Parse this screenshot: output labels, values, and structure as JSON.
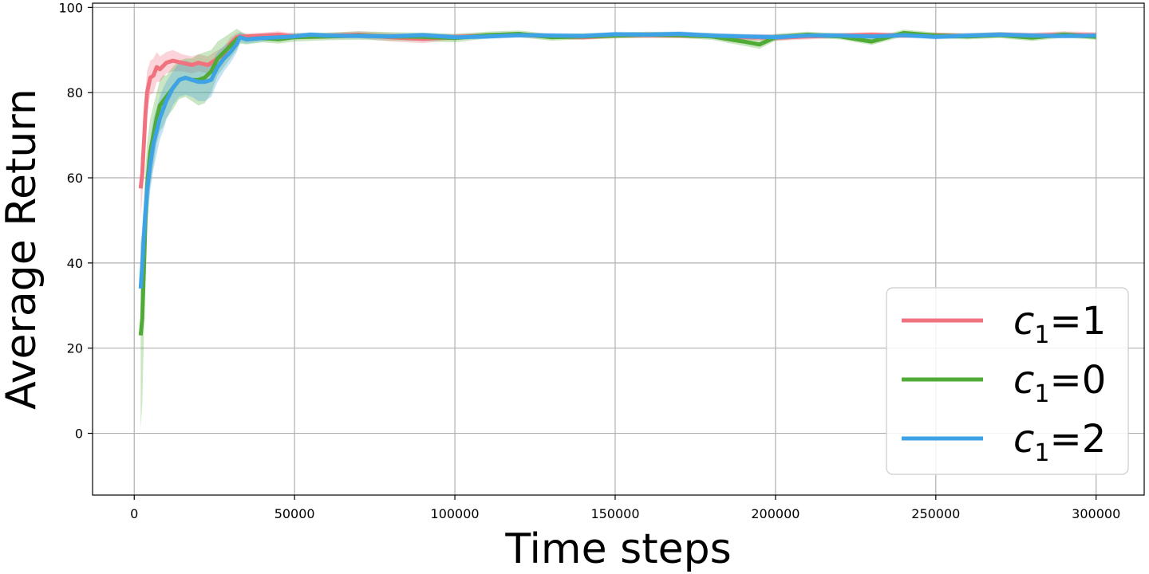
{
  "chart_data": {
    "type": "line",
    "title": "",
    "xlabel": "Time steps",
    "ylabel": "Average Return",
    "xlim": [
      -13000,
      315000
    ],
    "ylim": [
      -14.5,
      101
    ],
    "xticks": [
      0,
      50000,
      100000,
      150000,
      200000,
      250000,
      300000
    ],
    "xtick_labels": [
      "0",
      "50000",
      "100000",
      "150000",
      "200000",
      "250000",
      "300000"
    ],
    "yticks": [
      0,
      20,
      40,
      60,
      80,
      100
    ],
    "ytick_labels": [
      "0",
      "20",
      "40",
      "60",
      "80",
      "100"
    ],
    "grid": true,
    "legend_position": "bottom-right",
    "series": [
      {
        "name": "c1=1",
        "legend": {
          "base": "c",
          "sub": "1",
          "rest": "=1"
        },
        "color": "#f0727f",
        "x": [
          2000,
          2500,
          3000,
          3500,
          4000,
          5000,
          6000,
          7000,
          8000,
          10000,
          12000,
          15000,
          18000,
          20000,
          23000,
          25000,
          28000,
          30000,
          32000,
          33000,
          35000,
          40000,
          45000,
          50000,
          60000,
          70000,
          80000,
          90000,
          100000,
          110000,
          120000,
          130000,
          140000,
          150000,
          160000,
          170000,
          180000,
          190000,
          200000,
          210000,
          220000,
          230000,
          240000,
          250000,
          260000,
          270000,
          280000,
          290000,
          300000
        ],
        "y": [
          57.5,
          61,
          68,
          75,
          80,
          83.5,
          84,
          86,
          85.5,
          87,
          87.5,
          87,
          86.5,
          87,
          86.5,
          87.5,
          89,
          91.5,
          93,
          93.2,
          93.2,
          93.4,
          93.6,
          93.2,
          93.3,
          93.6,
          93,
          92.6,
          93.1,
          93.4,
          93.6,
          93.2,
          93,
          93.4,
          93.5,
          93.4,
          93.3,
          93,
          92.9,
          93.2,
          93.4,
          93.6,
          93.4,
          93.5,
          93.3,
          93.6,
          93.4,
          93.6,
          93.5
        ],
        "band_width": [
          7,
          6,
          6,
          5.5,
          5,
          4,
          4,
          3.5,
          3,
          2.5,
          2.5,
          2,
          2,
          2,
          2,
          2,
          1.8,
          1.5,
          1,
          0.8,
          0.7,
          0.7,
          0.8,
          0.7,
          0.7,
          0.8,
          1,
          1,
          0.7,
          0.6,
          0.6,
          0.6,
          0.6,
          0.6,
          0.7,
          0.6,
          0.6,
          0.7,
          0.8,
          0.7,
          0.6,
          0.6,
          0.6,
          0.6,
          0.6,
          0.6,
          0.7,
          0.8,
          0.7
        ]
      },
      {
        "name": "c1=0",
        "legend": {
          "base": "c",
          "sub": "1",
          "rest": "=0"
        },
        "color": "#4fab35",
        "x": [
          2000,
          2500,
          3000,
          3500,
          4000,
          5000,
          6000,
          7000,
          8000,
          9000,
          10000,
          12000,
          14000,
          16000,
          18000,
          20000,
          22000,
          24000,
          26000,
          28000,
          30000,
          32000,
          33000,
          35000,
          40000,
          45000,
          50000,
          60000,
          70000,
          80000,
          90000,
          100000,
          110000,
          120000,
          130000,
          140000,
          150000,
          160000,
          170000,
          180000,
          190000,
          195000,
          200000,
          210000,
          220000,
          230000,
          240000,
          250000,
          260000,
          270000,
          280000,
          290000,
          300000
        ],
        "y": [
          23,
          27,
          38,
          50,
          58,
          66,
          70,
          74,
          77,
          78,
          79,
          81,
          83,
          83.5,
          83,
          83,
          83.5,
          85,
          88,
          89.5,
          91,
          92.5,
          93,
          92.5,
          92.8,
          92.5,
          93,
          93.2,
          93.4,
          93.2,
          93.1,
          92.8,
          93.5,
          93.8,
          93,
          93.2,
          93.4,
          93.6,
          93.5,
          93.2,
          92,
          91.3,
          93,
          93.6,
          93.2,
          92,
          94,
          93.4,
          93.2,
          93.5,
          92.9,
          93.6,
          93.1
        ],
        "band_width": [
          22,
          20,
          15,
          12,
          10,
          8,
          7,
          6,
          6,
          6,
          5,
          5,
          4.5,
          4.5,
          5,
          6,
          6,
          5,
          4,
          3.5,
          3,
          2.5,
          1.5,
          1.2,
          1,
          1,
          1,
          0.9,
          1,
          1,
          1,
          1,
          0.8,
          0.8,
          0.8,
          0.7,
          0.7,
          0.7,
          0.7,
          0.8,
          1,
          1,
          0.8,
          0.7,
          0.7,
          0.8,
          0.8,
          0.7,
          0.7,
          0.7,
          0.8,
          0.7,
          0.7
        ]
      },
      {
        "name": "c1=2",
        "legend": {
          "base": "c",
          "sub": "1",
          "rest": "=2"
        },
        "color": "#3ea2e6",
        "x": [
          2000,
          2500,
          3000,
          3500,
          4000,
          5000,
          6000,
          7000,
          8000,
          9000,
          10000,
          12000,
          14000,
          16000,
          18000,
          20000,
          22000,
          24000,
          26000,
          28000,
          30000,
          32000,
          33000,
          35000,
          40000,
          45000,
          50000,
          55000,
          60000,
          70000,
          80000,
          90000,
          100000,
          110000,
          120000,
          130000,
          140000,
          150000,
          160000,
          170000,
          180000,
          190000,
          200000,
          210000,
          220000,
          230000,
          240000,
          250000,
          260000,
          270000,
          280000,
          290000,
          300000
        ],
        "y": [
          34,
          40,
          46,
          52,
          57,
          63,
          68,
          71,
          74,
          76,
          78,
          81,
          83,
          83.5,
          83,
          82.5,
          82.5,
          83,
          86,
          88,
          89.5,
          91.5,
          93,
          92.5,
          92.8,
          93,
          93.2,
          93.6,
          93.4,
          93.3,
          93.2,
          93.5,
          93,
          93.2,
          93.5,
          93.4,
          93.3,
          93.7,
          93.6,
          93.8,
          93.4,
          93.2,
          93,
          93.4,
          93.4,
          93.2,
          93.5,
          93.1,
          93.4,
          93.6,
          93.4,
          93.3,
          93.4
        ],
        "band_width": [
          10,
          9,
          8,
          7,
          7,
          6,
          6,
          5.5,
          5,
          5,
          4.5,
          4,
          4,
          4,
          4,
          4.5,
          4.5,
          4,
          3.5,
          3,
          2.5,
          2,
          1.2,
          1,
          0.8,
          0.7,
          0.7,
          0.6,
          0.6,
          0.6,
          0.6,
          0.6,
          0.6,
          0.6,
          0.6,
          0.6,
          0.6,
          0.6,
          0.6,
          0.6,
          0.6,
          0.6,
          0.7,
          0.6,
          0.6,
          0.6,
          0.6,
          0.6,
          0.6,
          0.6,
          0.6,
          0.6,
          0.6
        ]
      }
    ]
  }
}
